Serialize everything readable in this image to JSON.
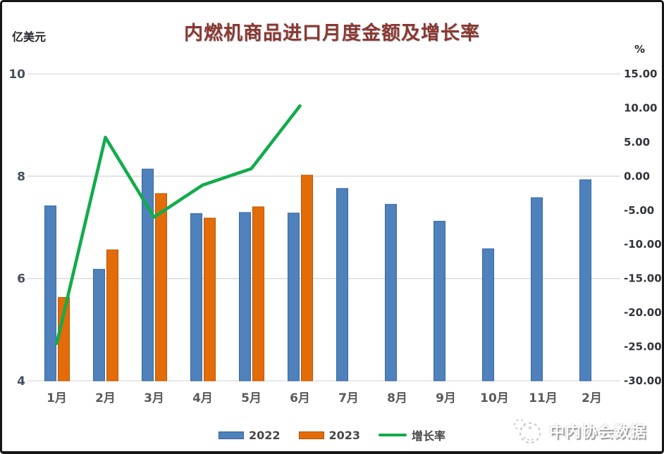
{
  "title": "内燃机商品进口月度金额及增长率",
  "watermark": {
    "text": "中内协会数据"
  },
  "legend": {
    "items": [
      {
        "label": "2022",
        "type": "bar",
        "color": "#4F81BD"
      },
      {
        "label": "2023",
        "type": "bar",
        "color": "#E36C09"
      },
      {
        "label": "增长率",
        "type": "line",
        "color": "#12AC4B"
      }
    ]
  },
  "chart_data": {
    "type": "bar",
    "combo": "bar+line",
    "title": "内燃机商品进口月度金额及增长率",
    "categories": [
      "1月",
      "2月",
      "3月",
      "4月",
      "5月",
      "6月",
      "7月",
      "8月",
      "9月",
      "10月",
      "11月",
      "2月"
    ],
    "series": [
      {
        "name": "2022",
        "type": "bar",
        "axis": "left",
        "color": "#4F81BD",
        "border": "#35689F",
        "values": [
          7.42,
          6.18,
          8.14,
          7.27,
          7.29,
          7.28,
          7.76,
          7.45,
          7.12,
          6.58,
          7.58,
          7.93
        ]
      },
      {
        "name": "2023",
        "type": "bar",
        "axis": "left",
        "color": "#E36C09",
        "border": "#B85603",
        "values": [
          5.63,
          6.56,
          7.66,
          7.18,
          7.4,
          8.02,
          null,
          null,
          null,
          null,
          null,
          null
        ]
      },
      {
        "name": "增长率",
        "type": "line",
        "axis": "right",
        "color": "#12AC4B",
        "values": [
          -24.5,
          5.7,
          -6.0,
          -1.3,
          1.1,
          10.3,
          null,
          null,
          null,
          null,
          null,
          null
        ]
      }
    ],
    "left_axis": {
      "label": "亿美元",
      "min": 4,
      "max": 10,
      "tick_values": [
        10,
        8,
        6,
        4
      ],
      "tick_labels": [
        "10",
        "8",
        "6",
        "4"
      ]
    },
    "right_axis": {
      "label": "%",
      "min": -30,
      "max": 15,
      "tick_values": [
        15,
        10,
        5,
        0,
        -5,
        -10,
        -15,
        -20,
        -25,
        -30
      ],
      "tick_labels": [
        "15.00",
        "10.00",
        "5.00",
        "0.00",
        "-5.00",
        "-10.00",
        "-15.00",
        "-20.00",
        "-25.00",
        "-30.00"
      ]
    },
    "gridlines": {
      "at_left_values": [
        10,
        8,
        6,
        4
      ],
      "color": "#D9D9D9"
    },
    "legend_position": "bottom",
    "grid": "horizontal-only"
  }
}
